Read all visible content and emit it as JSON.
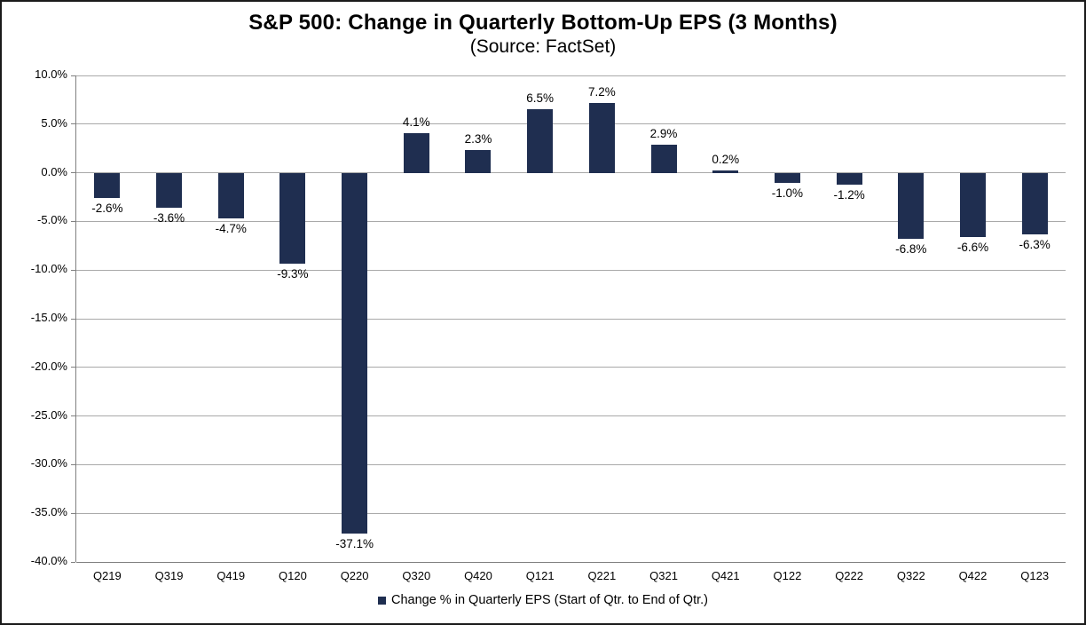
{
  "chart_data": {
    "type": "bar",
    "title": "S&P 500: Change in Quarterly Bottom-Up EPS (3 Months)",
    "subtitle": "(Source: FactSet)",
    "categories": [
      "Q219",
      "Q319",
      "Q419",
      "Q120",
      "Q220",
      "Q320",
      "Q420",
      "Q121",
      "Q221",
      "Q321",
      "Q421",
      "Q122",
      "Q222",
      "Q322",
      "Q422",
      "Q123"
    ],
    "values": [
      -2.6,
      -3.6,
      -4.7,
      -9.3,
      -37.1,
      4.1,
      2.3,
      6.5,
      7.2,
      2.9,
      0.2,
      -1.0,
      -1.2,
      -6.8,
      -6.6,
      -6.3
    ],
    "data_labels": [
      "-2.6%",
      "-3.6%",
      "-4.7%",
      "-9.3%",
      "-37.1%",
      "4.1%",
      "2.3%",
      "6.5%",
      "7.2%",
      "2.9%",
      "0.2%",
      "-1.0%",
      "-1.2%",
      "-6.8%",
      "-6.6%",
      "-6.3%"
    ],
    "legend": "Change % in Quarterly EPS (Start of Qtr. to End of Qtr.)",
    "legend_position": "bottom",
    "xlabel": "",
    "ylabel": "",
    "ylim": [
      -40,
      10
    ],
    "y_ticks": [
      10,
      5,
      0,
      -5,
      -10,
      -15,
      -20,
      -25,
      -30,
      -35,
      -40
    ],
    "y_tick_labels": [
      "10.0%",
      "5.0%",
      "0.0%",
      "-5.0%",
      "-10.0%",
      "-15.0%",
      "-20.0%",
      "-25.0%",
      "-30.0%",
      "-35.0%",
      "-40.0%"
    ],
    "grid": true,
    "colors": {
      "bar": "#1f2e50",
      "gridline": "#a9a9a9",
      "axis": "#808080",
      "text": "#000000",
      "background": "#ffffff"
    }
  }
}
